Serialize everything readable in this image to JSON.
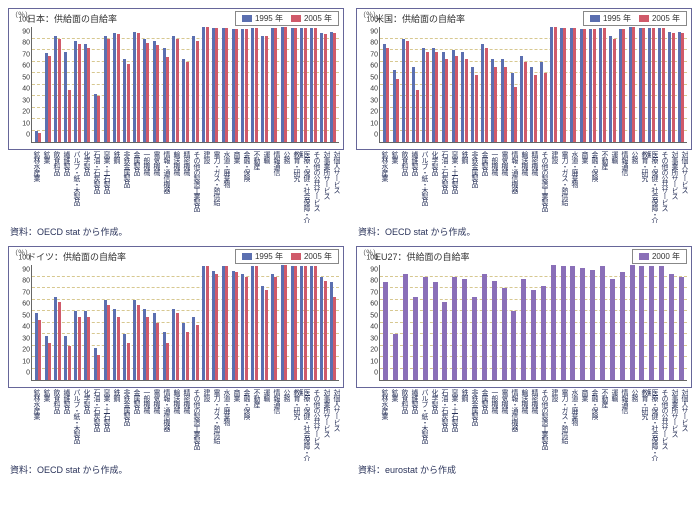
{
  "panels": [
    {
      "id": "japan",
      "title": "日本：供給面の自給率",
      "source": "資料：OECD stat から作成。",
      "legend": [
        {
          "label": "1995 年",
          "color": "#5b6fb0"
        },
        {
          "label": "2005 年",
          "color": "#d05a6a"
        }
      ],
      "ylabel": "（％）",
      "ylim": [
        0,
        100
      ],
      "ytick_step": 10,
      "grid_color": "#d7c890",
      "categories": [
        "鉱林水産業",
        "鉱業",
        "飲食料品",
        "繊維製品",
        "パルプ・紙・木製品",
        "化学製品",
        "石油・石炭製品",
        "窯業・土石製品",
        "鉄鋼",
        "非鉄金属製品",
        "金属製品",
        "一般機械",
        "電気機械",
        "情報・通信機器",
        "輸送機械",
        "精密機械",
        "その他の製造工業製品",
        "建設",
        "電力・ガス・熱供給",
        "水道・廃棄物",
        "商業",
        "金融・保険",
        "不動産",
        "運輸",
        "情報通信",
        "公務",
        "教育・研究",
        "医療・保健・社会保障・介護",
        "その他の公共サービス",
        "対事業所サービス",
        "対個人サービス"
      ],
      "series": [
        {
          "color": "#5b6fb0",
          "values": [
            10,
            77,
            92,
            78,
            88,
            85,
            42,
            92,
            95,
            72,
            96,
            90,
            88,
            82,
            92,
            72,
            92,
            100,
            99,
            99,
            98,
            98,
            99,
            92,
            99,
            100,
            99,
            99,
            99,
            95,
            96
          ]
        },
        {
          "color": "#d05a6a",
          "values": [
            8,
            75,
            90,
            45,
            85,
            82,
            40,
            90,
            94,
            68,
            95,
            86,
            84,
            74,
            90,
            70,
            88,
            100,
            99,
            99,
            98,
            98,
            99,
            92,
            99,
            100,
            99,
            99,
            99,
            94,
            95
          ]
        }
      ]
    },
    {
      "id": "usa",
      "title": "米国：供給面の自給率",
      "source": "資料：OECD stat から作成。",
      "legend": [
        {
          "label": "1995 年",
          "color": "#5b6fb0"
        },
        {
          "label": "2005 年",
          "color": "#d05a6a"
        }
      ],
      "ylabel": "（％）",
      "ylim": [
        0,
        100
      ],
      "ytick_step": 10,
      "grid_color": "#d7c890",
      "categories": [
        "鉱林水産業",
        "鉱業",
        "飲食料品",
        "繊維製品",
        "パルプ・紙・木製品",
        "化学製品",
        "石油・石炭製品",
        "窯業・土石製品",
        "鉄鋼",
        "非鉄金属製品",
        "金属製品",
        "一般機械",
        "電気機械",
        "情報・通信機器",
        "輸送機械",
        "精密機械",
        "その他の製造工業製品",
        "建設",
        "電力・ガス・熱供給",
        "水道・廃棄物",
        "商業",
        "金融・保険",
        "不動産",
        "運輸",
        "情報通信",
        "公務",
        "教育・研究",
        "医療・保健・社会保障・介護",
        "その他の公共サービス",
        "対事業所サービス",
        "対個人サービス"
      ],
      "series": [
        {
          "color": "#5b6fb0",
          "values": [
            85,
            63,
            90,
            65,
            82,
            82,
            78,
            80,
            78,
            65,
            85,
            72,
            72,
            60,
            75,
            65,
            70,
            100,
            99,
            99,
            98,
            98,
            99,
            92,
            98,
            100,
            99,
            99,
            99,
            96,
            96
          ]
        },
        {
          "color": "#d05a6a",
          "values": [
            82,
            55,
            88,
            45,
            78,
            78,
            72,
            75,
            72,
            58,
            82,
            65,
            65,
            48,
            70,
            58,
            60,
            100,
            99,
            99,
            98,
            98,
            99,
            90,
            98,
            100,
            99,
            99,
            99,
            95,
            95
          ]
        }
      ]
    },
    {
      "id": "germany",
      "title": "ドイツ：供給面の自給率",
      "source": "資料：OECD stat から作成。",
      "legend": [
        {
          "label": "1995 年",
          "color": "#5b6fb0"
        },
        {
          "label": "2005 年",
          "color": "#d05a6a"
        }
      ],
      "ylabel": "（％）",
      "ylim": [
        0,
        100
      ],
      "ytick_step": 10,
      "grid_color": "#d7c890",
      "categories": [
        "鉱林水産業",
        "鉱業",
        "飲食料品",
        "繊維製品",
        "パルプ・紙・木製品",
        "化学製品",
        "石油・石炭製品",
        "窯業・土石製品",
        "鉄鋼",
        "非鉄金属製品",
        "金属製品",
        "一般機械",
        "電気機械",
        "情報・通信機器",
        "輸送機械",
        "精密機械",
        "その他の製造工業製品",
        "建設",
        "電力・ガス・熱供給",
        "水道・廃棄物",
        "商業",
        "金融・保険",
        "不動産",
        "運輸",
        "情報通信",
        "公務",
        "教育・研究",
        "医療・保健・社会保障・介護",
        "その他の公共サービス",
        "対事業所サービス",
        "対個人サービス"
      ],
      "series": [
        {
          "color": "#5b6fb0",
          "values": [
            58,
            38,
            72,
            38,
            60,
            60,
            28,
            70,
            62,
            40,
            70,
            62,
            58,
            42,
            62,
            50,
            55,
            99,
            95,
            99,
            95,
            92,
            99,
            82,
            92,
            100,
            99,
            99,
            99,
            90,
            85
          ]
        },
        {
          "color": "#d05a6a",
          "values": [
            52,
            32,
            68,
            30,
            55,
            55,
            22,
            65,
            55,
            32,
            65,
            55,
            50,
            32,
            58,
            42,
            48,
            99,
            92,
            99,
            94,
            90,
            99,
            78,
            90,
            100,
            99,
            99,
            99,
            86,
            72
          ]
        }
      ]
    },
    {
      "id": "eu27",
      "title": "EU27：供給面の自給率",
      "source": "資料：eurostat から作成",
      "legend": [
        {
          "label": "2000 年",
          "color": "#8a6fb8"
        }
      ],
      "ylabel": "（％）",
      "ylim": [
        0,
        100
      ],
      "ytick_step": 10,
      "grid_color": "#d7c890",
      "categories": [
        "鉱林水産業",
        "鉱業",
        "飲食料品",
        "繊維製品",
        "パルプ・紙・木製品",
        "化学製品",
        "石油・石炭製品",
        "窯業・土石製品",
        "鉄鋼",
        "非鉄金属製品",
        "金属製品",
        "一般機械",
        "電気機械",
        "情報・通信機器",
        "輸送機械",
        "精密機械",
        "その他の製造工業製品",
        "建設",
        "電力・ガス・熱供給",
        "水道・廃棄物",
        "商業",
        "金融・保険",
        "不動産",
        "運輸",
        "情報通信",
        "公務",
        "教育・研究",
        "医療・保健・社会保障・介護",
        "その他の公共サービス",
        "対事業所サービス",
        "対個人サービス"
      ],
      "series": [
        {
          "color": "#8a6fb8",
          "values": [
            85,
            40,
            92,
            72,
            90,
            85,
            68,
            90,
            88,
            72,
            92,
            86,
            80,
            60,
            88,
            78,
            82,
            100,
            99,
            99,
            97,
            96,
            99,
            88,
            94,
            100,
            99,
            99,
            99,
            92,
            90
          ]
        }
      ]
    }
  ]
}
